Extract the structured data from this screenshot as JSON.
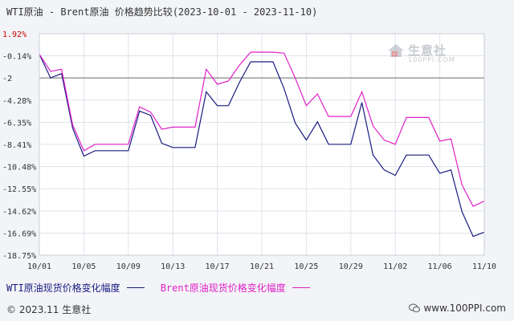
{
  "title": "WTI原油 - Brent原油 价格趋势比较(2023-10-01 - 2023-11-10)",
  "footer": "© 2023.11 生意社",
  "footer_right": "www.100PPI.com",
  "watermark": {
    "brand": "生意社",
    "sub": "100PPI.COM"
  },
  "colors": {
    "wti": "#1a1a80",
    "brent": "#e020c8",
    "zero_line": "#888888",
    "grid": "#dde3ea",
    "plot_bg": "#ffffff",
    "axis_red": "#cc0000"
  },
  "chart_data": {
    "type": "line",
    "title": "WTI原油 - Brent原油 价格趋势比较(2023-10-01 - 2023-11-10)",
    "y_tick_labels": [
      "1.92%",
      "-0.14%",
      "-2",
      "-4.28%",
      "-6.35%",
      "-8.41%",
      "-10.48%",
      "-12.55%",
      "-14.62%",
      "-16.69%",
      "-18.75%"
    ],
    "y_ticks": [
      1.92,
      -0.14,
      -2.21,
      -4.28,
      -6.35,
      -8.41,
      -10.48,
      -12.55,
      -14.62,
      -16.69,
      -18.75
    ],
    "ylim": [
      -18.75,
      1.92
    ],
    "reference_line": -2.21,
    "x_tick_labels": [
      "10/01",
      "10/05",
      "10/09",
      "10/13",
      "10/17",
      "10/21",
      "10/25",
      "10/29",
      "11/02",
      "11/06",
      "11/10"
    ],
    "x_tick_index": [
      0,
      4,
      8,
      12,
      16,
      20,
      24,
      28,
      32,
      36,
      40
    ],
    "x_count": 41,
    "grid": true,
    "legend_position": "bottom-left",
    "series": [
      {
        "name": "WTI原油现货价格变化幅度",
        "key": "wti",
        "points": [
          [
            0,
            0
          ],
          [
            1,
            -2.2
          ],
          [
            2,
            -1.8
          ],
          [
            3,
            -6.9
          ],
          [
            4,
            -9.5
          ],
          [
            5,
            -9.0
          ],
          [
            6,
            -9.0
          ],
          [
            7,
            -9.0
          ],
          [
            8,
            -9.0
          ],
          [
            9,
            -5.3
          ],
          [
            10,
            -5.7
          ],
          [
            11,
            -8.3
          ],
          [
            12,
            -8.7
          ],
          [
            13,
            -8.7
          ],
          [
            14,
            -8.7
          ],
          [
            15,
            -3.5
          ],
          [
            16,
            -4.8
          ],
          [
            17,
            -4.8
          ],
          [
            18,
            -2.6
          ],
          [
            19,
            -0.7
          ],
          [
            20,
            -0.7
          ],
          [
            21,
            -0.7
          ],
          [
            22,
            -3.2
          ],
          [
            23,
            -6.4
          ],
          [
            24,
            -8.0
          ],
          [
            25,
            -6.3
          ],
          [
            26,
            -8.4
          ],
          [
            27,
            -8.4
          ],
          [
            28,
            -8.4
          ],
          [
            29,
            -4.5
          ],
          [
            30,
            -9.4
          ],
          [
            31,
            -10.8
          ],
          [
            32,
            -11.3
          ],
          [
            33,
            -9.4
          ],
          [
            34,
            -9.4
          ],
          [
            35,
            -9.4
          ],
          [
            36,
            -11.1
          ],
          [
            37,
            -10.8
          ],
          [
            38,
            -14.7
          ],
          [
            39,
            -17.0
          ],
          [
            40,
            -16.6
          ]
        ]
      },
      {
        "name": "Brent原油现货价格变化幅度",
        "key": "brent",
        "points": [
          [
            0,
            0
          ],
          [
            1,
            -1.6
          ],
          [
            2,
            -1.4
          ],
          [
            3,
            -6.6
          ],
          [
            4,
            -9.0
          ],
          [
            5,
            -8.4
          ],
          [
            6,
            -8.4
          ],
          [
            7,
            -8.4
          ],
          [
            8,
            -8.4
          ],
          [
            9,
            -4.9
          ],
          [
            10,
            -5.4
          ],
          [
            11,
            -7.0
          ],
          [
            12,
            -6.8
          ],
          [
            13,
            -6.8
          ],
          [
            14,
            -6.8
          ],
          [
            15,
            -1.4
          ],
          [
            16,
            -2.8
          ],
          [
            17,
            -2.5
          ],
          [
            18,
            -1.0
          ],
          [
            19,
            0.2
          ],
          [
            20,
            0.2
          ],
          [
            21,
            0.2
          ],
          [
            22,
            0.1
          ],
          [
            23,
            -2.2
          ],
          [
            24,
            -4.8
          ],
          [
            25,
            -3.7
          ],
          [
            26,
            -5.8
          ],
          [
            27,
            -5.8
          ],
          [
            28,
            -5.8
          ],
          [
            29,
            -3.5
          ],
          [
            30,
            -6.7
          ],
          [
            31,
            -8.0
          ],
          [
            32,
            -8.4
          ],
          [
            33,
            -5.9
          ],
          [
            34,
            -5.9
          ],
          [
            35,
            -5.9
          ],
          [
            36,
            -8.1
          ],
          [
            37,
            -7.9
          ],
          [
            38,
            -12.2
          ],
          [
            39,
            -14.2
          ],
          [
            40,
            -13.7
          ]
        ]
      }
    ]
  }
}
